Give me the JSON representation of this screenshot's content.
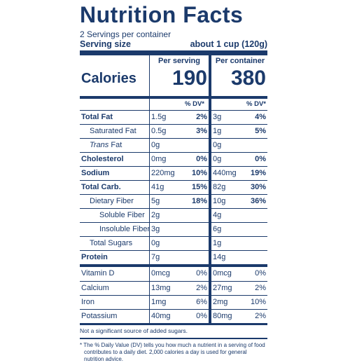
{
  "label": {
    "title": "Nutrition Facts",
    "servings_per_container": "2 Servings per container",
    "serving_size_label": "Serving size",
    "serving_size_value": "about 1 cup (120g)"
  },
  "calories": {
    "label": "Calories",
    "per_serving_heading": "Per serving",
    "per_container_heading": "Per container",
    "per_serving": "190",
    "per_container": "380",
    "dv_heading": "% DV*"
  },
  "rows": [
    {
      "name": "Total Fat",
      "bold": true,
      "indent": 0,
      "amt1": "1.5g",
      "dv1": "2%",
      "amt2": "3g",
      "dv2": "4%"
    },
    {
      "name": "Saturated Fat",
      "bold": false,
      "indent": 1,
      "amt1": "0.5g",
      "dv1": "3%",
      "amt2": "1g",
      "dv2": "5%"
    },
    {
      "name": "Trans Fat",
      "bold": false,
      "indent": 1,
      "italic_prefix": "Trans",
      "amt1": "0g",
      "dv1": "",
      "amt2": "0g",
      "dv2": ""
    },
    {
      "name": "Cholesterol",
      "bold": true,
      "indent": 0,
      "amt1": "0mg",
      "dv1": "0%",
      "amt2": "0g",
      "dv2": "0%"
    },
    {
      "name": "Sodium",
      "bold": true,
      "indent": 0,
      "amt1": "220mg",
      "dv1": "10%",
      "amt2": "440mg",
      "dv2": "19%"
    },
    {
      "name": "Total Carb.",
      "bold": true,
      "indent": 0,
      "amt1": "41g",
      "dv1": "15%",
      "amt2": "82g",
      "dv2": "30%"
    },
    {
      "name": "Dietary Fiber",
      "bold": false,
      "indent": 1,
      "amt1": "5g",
      "dv1": "18%",
      "amt2": "10g",
      "dv2": "36%"
    },
    {
      "name": "Soluble Fiber",
      "bold": false,
      "indent": 2,
      "amt1": "2g",
      "dv1": "",
      "amt2": "4g",
      "dv2": ""
    },
    {
      "name": "Insoluble Fiber",
      "bold": false,
      "indent": 2,
      "amt1": "3g",
      "dv1": "",
      "amt2": "6g",
      "dv2": ""
    },
    {
      "name": "Total Sugars",
      "bold": false,
      "indent": 1,
      "amt1": "0g",
      "dv1": "",
      "amt2": "1g",
      "dv2": ""
    },
    {
      "name": "Protein",
      "bold": true,
      "indent": 0,
      "amt1": "7g",
      "dv1": "",
      "amt2": "14g",
      "dv2": ""
    }
  ],
  "vitamins": [
    {
      "name": "Vitamin D",
      "amt1": "0mcg",
      "dv1": "0%",
      "amt2": "0mcg",
      "dv2": "0%"
    },
    {
      "name": "Calcium",
      "amt1": "13mg",
      "dv1": "2%",
      "amt2": "27mg",
      "dv2": "2%"
    },
    {
      "name": "Iron",
      "amt1": "1mg",
      "dv1": "6%",
      "amt2": "2mg",
      "dv2": "10%"
    },
    {
      "name": "Potassium",
      "amt1": "40mg",
      "dv1": "0%",
      "amt2": "80mg",
      "dv2": "2%"
    }
  ],
  "footnotes": {
    "sugar_note": "Not a significant source of added sugars.",
    "dv_note": "* The % Daily Value (DV) tells you how much a nutrient in a serving of food contributes to a daily diet. 2,000 calories a day is used for general nutrition advice."
  },
  "colors": {
    "ink": "#1b3a6b",
    "background": "#ffffff"
  }
}
